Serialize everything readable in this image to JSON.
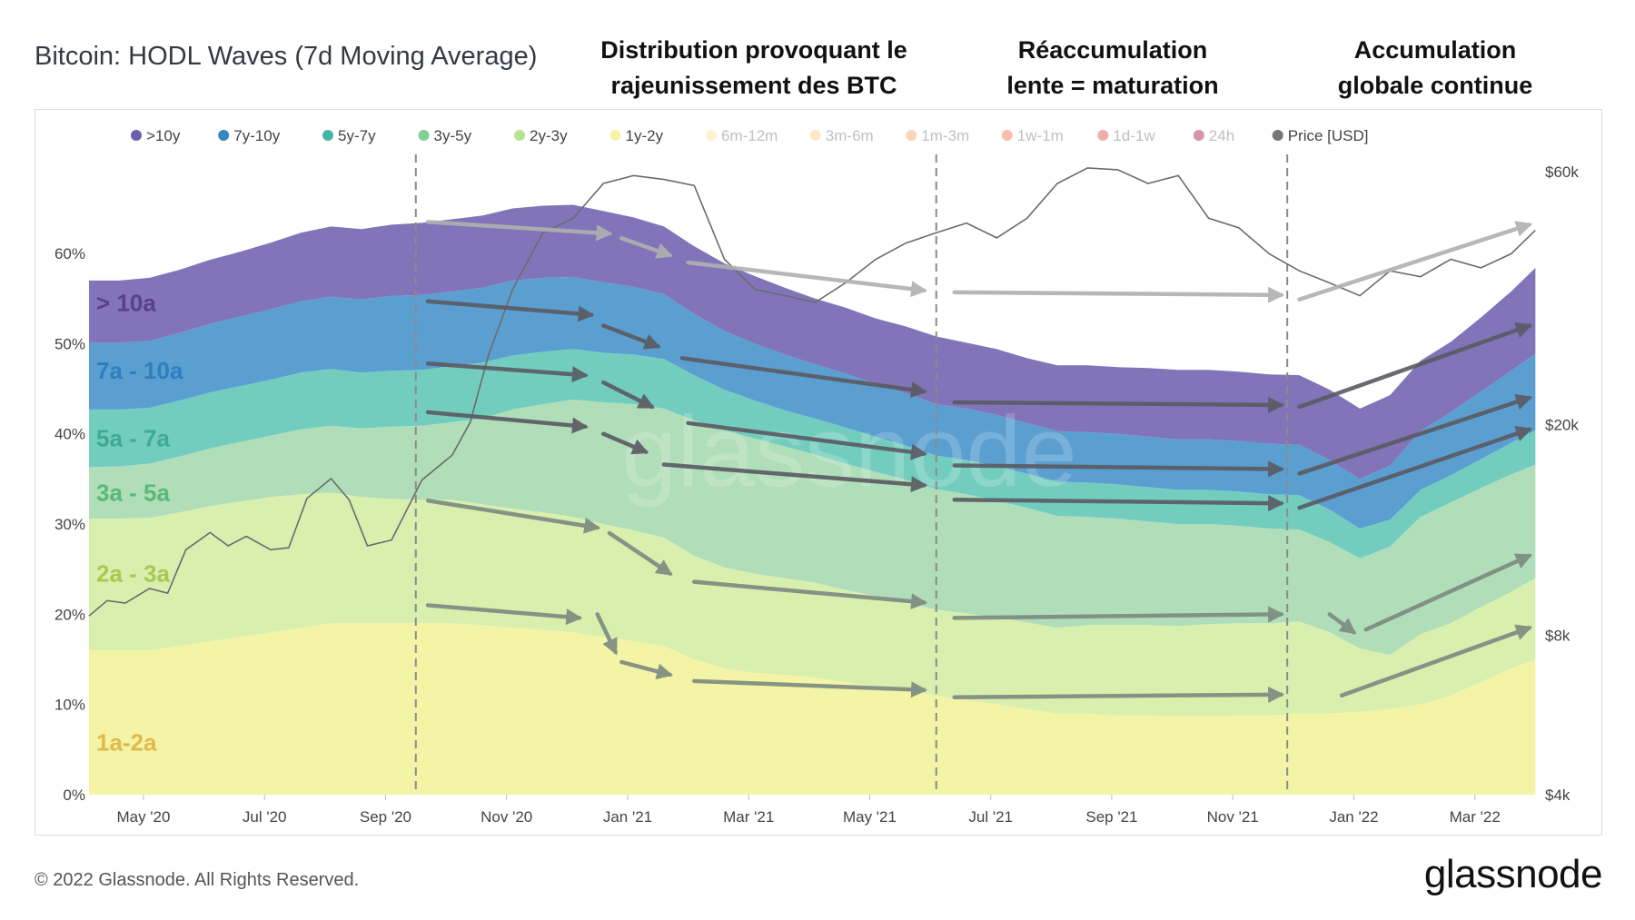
{
  "title": "Bitcoin: HODL Waves (7d Moving Average)",
  "annotations": [
    {
      "line1": "Distribution provoquant le",
      "line2": "rajeunissement des BTC"
    },
    {
      "line1": "Réaccumulation",
      "line2": "lente = maturation"
    },
    {
      "line1": "Accumulation",
      "line2": "globale continue"
    }
  ],
  "footer": {
    "copyright": "© 2022 Glassnode. All Rights Reserved.",
    "brand": "glassnode"
  },
  "watermark": "glassnode",
  "chart_data": {
    "type": "area",
    "stacked": true,
    "title": "Bitcoin: HODL Waves (7d Moving Average)",
    "x_tick_labels": [
      "May '20",
      "Jul '20",
      "Sep '20",
      "Nov '20",
      "Jan '21",
      "Mar '21",
      "May '21",
      "Jul '21",
      "Sep '21",
      "Nov '21",
      "Jan '22",
      "Mar '22"
    ],
    "x_range": [
      0,
      24
    ],
    "y_left_range": [
      0,
      0.73
    ],
    "y_left_ticks": [
      "0%",
      "10%",
      "20%",
      "30%",
      "40%",
      "50%",
      "60%"
    ],
    "y_right_ticks": [
      "$4k",
      "$8k",
      "$20k",
      "$60k"
    ],
    "y_right_range_usd": [
      4000,
      70000
    ],
    "legend": [
      {
        "label": ">10y",
        "color": "#6c5fae",
        "active": true
      },
      {
        "label": "7y-10y",
        "color": "#3a86c0",
        "active": true
      },
      {
        "label": "5y-7y",
        "color": "#46b5a8",
        "active": true
      },
      {
        "label": "3y-5y",
        "color": "#7fcf98",
        "active": true
      },
      {
        "label": "2y-3y",
        "color": "#b9e28f",
        "active": true
      },
      {
        "label": "1y-2y",
        "color": "#f3f4a6",
        "active": true
      },
      {
        "label": "6m-12m",
        "color": "#f6e59a",
        "active": false
      },
      {
        "label": "3m-6m",
        "color": "#f6cf7e",
        "active": false
      },
      {
        "label": "1m-3m",
        "color": "#f4a45f",
        "active": false
      },
      {
        "label": "1w-1m",
        "color": "#ee7148",
        "active": false
      },
      {
        "label": "1d-1w",
        "color": "#dd4a50",
        "active": false
      },
      {
        "label": "24h",
        "color": "#a5124e",
        "active": false
      },
      {
        "label": "Price [USD]",
        "color": "#777777",
        "active": true
      }
    ],
    "band_labels": [
      {
        "text": "> 10a",
        "color": "#5b3f8c",
        "at_y": 0.545
      },
      {
        "text": "7a - 10a",
        "color": "#2e7fbf",
        "at_y": 0.47
      },
      {
        "text": "5a - 7a",
        "color": "#3faa92",
        "at_y": 0.395
      },
      {
        "text": "3a - 5a",
        "color": "#58b97a",
        "at_y": 0.335
      },
      {
        "text": "2a - 3a",
        "color": "#a8c850",
        "at_y": 0.245
      },
      {
        "text": "1a-2a",
        "color": "#e1b94a",
        "at_y": 0.058
      }
    ],
    "x": [
      0,
      0.5,
      1,
      1.5,
      2,
      2.5,
      3,
      3.5,
      4,
      4.5,
      5,
      5.5,
      6,
      6.5,
      7,
      7.5,
      8,
      8.5,
      9,
      9.5,
      10,
      10.5,
      11,
      11.5,
      12,
      12.5,
      13,
      13.5,
      14,
      14.5,
      15,
      15.5,
      16,
      16.5,
      17,
      17.5,
      18,
      18.5,
      19,
      19.5,
      20,
      20.5,
      21,
      21.5,
      22,
      22.5,
      23,
      23.5,
      23.9
    ],
    "series": [
      {
        "name": "1y-2y",
        "color": "#f3f4a6",
        "values": [
          0.16,
          0.16,
          0.16,
          0.165,
          0.17,
          0.175,
          0.18,
          0.185,
          0.19,
          0.19,
          0.19,
          0.19,
          0.19,
          0.188,
          0.185,
          0.183,
          0.18,
          0.175,
          0.17,
          0.165,
          0.15,
          0.14,
          0.135,
          0.133,
          0.13,
          0.125,
          0.12,
          0.115,
          0.11,
          0.105,
          0.1,
          0.095,
          0.09,
          0.09,
          0.088,
          0.088,
          0.087,
          0.087,
          0.088,
          0.088,
          0.09,
          0.09,
          0.092,
          0.095,
          0.1,
          0.11,
          0.125,
          0.14,
          0.15
        ]
      },
      {
        "name": "2y-3y",
        "color": "#d8efae",
        "values": [
          0.146,
          0.146,
          0.147,
          0.148,
          0.15,
          0.15,
          0.15,
          0.148,
          0.145,
          0.14,
          0.138,
          0.137,
          0.137,
          0.134,
          0.132,
          0.13,
          0.128,
          0.125,
          0.123,
          0.12,
          0.115,
          0.112,
          0.11,
          0.107,
          0.105,
          0.102,
          0.1,
          0.098,
          0.095,
          0.096,
          0.096,
          0.096,
          0.095,
          0.098,
          0.1,
          0.1,
          0.1,
          0.102,
          0.102,
          0.102,
          0.102,
          0.09,
          0.07,
          0.06,
          0.078,
          0.08,
          0.083,
          0.085,
          0.09
        ]
      },
      {
        "name": "3y-5y",
        "color": "#b0deb9",
        "values": [
          0.057,
          0.058,
          0.06,
          0.062,
          0.064,
          0.066,
          0.068,
          0.072,
          0.074,
          0.076,
          0.08,
          0.082,
          0.086,
          0.095,
          0.11,
          0.12,
          0.13,
          0.135,
          0.14,
          0.143,
          0.15,
          0.152,
          0.15,
          0.146,
          0.142,
          0.14,
          0.138,
          0.136,
          0.134,
          0.132,
          0.13,
          0.127,
          0.124,
          0.12,
          0.118,
          0.115,
          0.113,
          0.111,
          0.108,
          0.105,
          0.102,
          0.1,
          0.1,
          0.12,
          0.13,
          0.134,
          0.132,
          0.13,
          0.126
        ]
      },
      {
        "name": "5y-7y",
        "color": "#73cdbf",
        "values": [
          0.064,
          0.063,
          0.062,
          0.062,
          0.062,
          0.062,
          0.062,
          0.063,
          0.063,
          0.062,
          0.062,
          0.062,
          0.062,
          0.062,
          0.06,
          0.058,
          0.056,
          0.055,
          0.055,
          0.055,
          0.05,
          0.045,
          0.042,
          0.04,
          0.04,
          0.04,
          0.039,
          0.038,
          0.037,
          0.038,
          0.038,
          0.038,
          0.038,
          0.038,
          0.038,
          0.038,
          0.038,
          0.038,
          0.038,
          0.038,
          0.038,
          0.036,
          0.033,
          0.03,
          0.03,
          0.03,
          0.032,
          0.035,
          0.038
        ]
      },
      {
        "name": "7y-10y",
        "color": "#5a9fd0",
        "values": [
          0.074,
          0.074,
          0.074,
          0.075,
          0.076,
          0.077,
          0.078,
          0.079,
          0.08,
          0.081,
          0.083,
          0.083,
          0.083,
          0.083,
          0.083,
          0.082,
          0.08,
          0.078,
          0.075,
          0.072,
          0.068,
          0.065,
          0.063,
          0.062,
          0.06,
          0.06,
          0.058,
          0.058,
          0.057,
          0.057,
          0.057,
          0.056,
          0.056,
          0.056,
          0.056,
          0.056,
          0.056,
          0.056,
          0.056,
          0.056,
          0.056,
          0.055,
          0.055,
          0.06,
          0.065,
          0.07,
          0.075,
          0.08,
          0.085
        ]
      },
      {
        "name": ">10y",
        "color": "#8174b9",
        "values": [
          0.069,
          0.069,
          0.07,
          0.07,
          0.071,
          0.072,
          0.074,
          0.076,
          0.078,
          0.078,
          0.079,
          0.08,
          0.08,
          0.08,
          0.08,
          0.08,
          0.08,
          0.079,
          0.077,
          0.075,
          0.075,
          0.075,
          0.075,
          0.074,
          0.073,
          0.073,
          0.073,
          0.074,
          0.075,
          0.073,
          0.073,
          0.072,
          0.073,
          0.074,
          0.074,
          0.076,
          0.077,
          0.077,
          0.077,
          0.077,
          0.077,
          0.078,
          0.078,
          0.078,
          0.078,
          0.078,
          0.082,
          0.088,
          0.095
        ]
      }
    ],
    "price_usd": {
      "name": "Price [USD]",
      "x": [
        0,
        0.3,
        0.6,
        1,
        1.3,
        1.6,
        2,
        2.3,
        2.6,
        3,
        3.3,
        3.6,
        4,
        4.3,
        4.6,
        5,
        5.5,
        6,
        6.3,
        6.6,
        7,
        7.5,
        8,
        8.5,
        9,
        9.5,
        10,
        10.5,
        11,
        11.5,
        12,
        12.5,
        13,
        13.5,
        14,
        14.5,
        15,
        15.5,
        16,
        16.5,
        17,
        17.5,
        18,
        18.5,
        19,
        19.5,
        20,
        20.5,
        21,
        21.5,
        22,
        22.5,
        23,
        23.5,
        23.9
      ],
      "values": [
        8700,
        9300,
        9200,
        9800,
        9600,
        11600,
        12500,
        11800,
        12300,
        11600,
        11700,
        14500,
        15800,
        14400,
        11800,
        12100,
        15700,
        17500,
        20200,
        27000,
        36000,
        46000,
        49000,
        57000,
        59000,
        58000,
        56500,
        41000,
        36000,
        35000,
        34000,
        37000,
        41000,
        44000,
        46000,
        48000,
        45000,
        49000,
        57000,
        61000,
        60500,
        57000,
        59000,
        49000,
        47000,
        42000,
        39000,
        37000,
        35000,
        39000,
        38000,
        41000,
        39500,
        42000,
        46500
      ]
    }
  }
}
